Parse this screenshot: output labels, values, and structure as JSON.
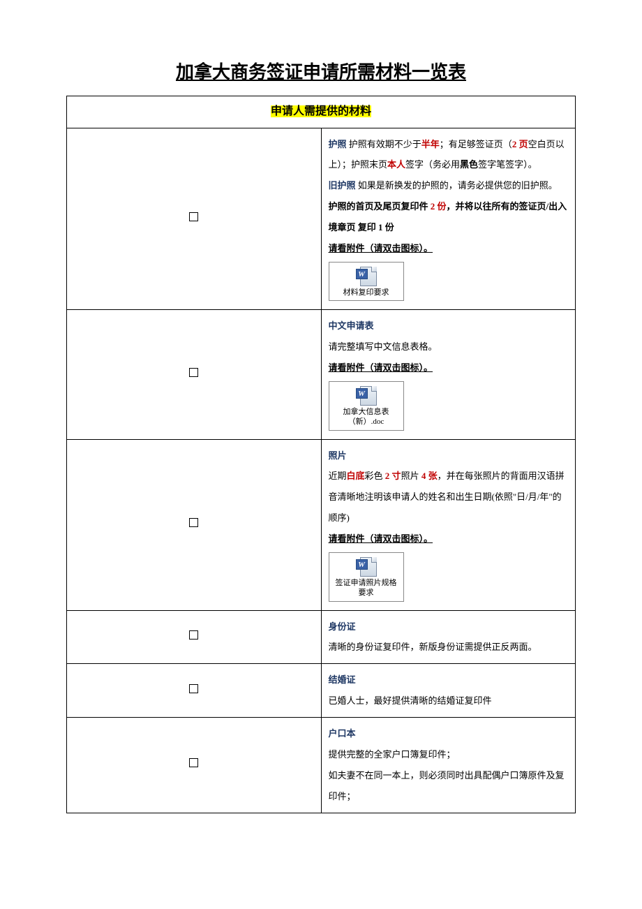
{
  "title": "加拿大商务签证申请所需材料一览表",
  "section_header": "申请人需提供的材料",
  "colors": {
    "highlight": "#ffff00",
    "blue": "#1f3864",
    "red": "#c00000",
    "text": "#000000",
    "border": "#000000",
    "background": "#ffffff"
  },
  "items": [
    {
      "rows": [
        {
          "segments": [
            {
              "text": "护照",
              "blue": true
            },
            {
              "text": " 护照有效期不少于"
            },
            {
              "text": "半年",
              "red": true
            },
            {
              "text": "；有足够签证页（"
            },
            {
              "text": "2 页",
              "red": true
            },
            {
              "text": "空白页以上）；护照末页"
            },
            {
              "text": "本人",
              "red": true
            },
            {
              "text": "签字（务必用"
            },
            {
              "text": "黑色",
              "blackbold": true
            },
            {
              "text": "签字笔签字）。"
            }
          ]
        },
        {
          "segments": [
            {
              "text": "旧护照",
              "blue": true
            },
            {
              "text": " 如果是新换发的护照的，请务必提供您的旧护照。"
            }
          ]
        },
        {
          "segments": [
            {
              "text": "护照的首页及尾页复印件 ",
              "bold": true
            },
            {
              "text": "2 份",
              "red": true,
              "bold": true
            },
            {
              "text": "，并将以往所有的签证页/出入境章页 复印 1 份",
              "bold": true
            }
          ]
        },
        {
          "segments": [
            {
              "text": "请看附件（请双击图标）。",
              "bold": true,
              "underline": true
            }
          ]
        }
      ],
      "attachment_label": "材料复印要求"
    },
    {
      "rows": [
        {
          "segments": [
            {
              "text": "中文申请表",
              "blue": true
            }
          ]
        },
        {
          "segments": [
            {
              "text": "请完整填写中文信息表格。"
            }
          ]
        },
        {
          "segments": [
            {
              "text": "请看附件（请双击图标）。",
              "bold": true,
              "underline": true
            }
          ]
        }
      ],
      "attachment_label": "加拿大信息表（新）.doc"
    },
    {
      "rows": [
        {
          "segments": [
            {
              "text": "照片",
              "blue": true
            }
          ]
        },
        {
          "segments": [
            {
              "text": "近期"
            },
            {
              "text": "白底",
              "red": true
            },
            {
              "text": "彩色 "
            },
            {
              "text": "2 寸",
              "red": true
            },
            {
              "text": "照片 "
            },
            {
              "text": "4 张",
              "red": true
            },
            {
              "text": "，并在每张照片的背面用汉语拼音清晰地注明该申请人的姓名和出生日期(依照\"日/月/年\"的顺序)"
            }
          ]
        },
        {
          "segments": [
            {
              "text": "请看附件（请双击图标）。",
              "bold": true,
              "underline": true
            }
          ]
        }
      ],
      "attachment_label": "签证申请照片规格要求"
    },
    {
      "rows": [
        {
          "segments": [
            {
              "text": "身份证",
              "blue": true
            }
          ]
        },
        {
          "segments": [
            {
              "text": "清晰的身份证复印件，新版身份证需提供正反两面。"
            }
          ]
        }
      ]
    },
    {
      "rows": [
        {
          "segments": [
            {
              "text": "结婚证",
              "blue": true
            }
          ]
        },
        {
          "segments": [
            {
              "text": "已婚人士，最好提供清晰的结婚证复印件"
            }
          ]
        }
      ]
    },
    {
      "rows": [
        {
          "segments": [
            {
              "text": "户口本",
              "blue": true
            }
          ]
        },
        {
          "segments": [
            {
              "text": "提供完整的全家户口簿复印件；"
            }
          ]
        },
        {
          "segments": [
            {
              "text": "如夫妻不在同一本上，则必须同时出具配偶户口簿原件及复印件；"
            }
          ]
        }
      ]
    }
  ]
}
